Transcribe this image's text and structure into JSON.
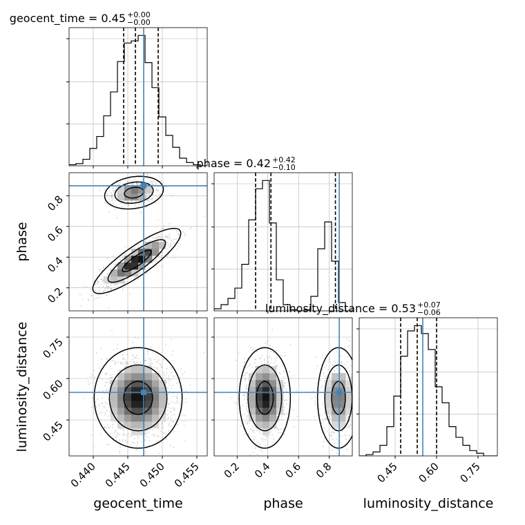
{
  "chart_data": {
    "type": "corner",
    "parameters": [
      "geocent_time",
      "phase",
      "luminosity_distance"
    ],
    "truths": {
      "geocent_time": 0.4473,
      "phase": 0.865,
      "luminosity_distance": 0.55
    },
    "colors": {
      "truth": "#4682b4",
      "hist": "#000000",
      "quantile": "#000000",
      "grid": "#b0b0b0"
    },
    "grid": true,
    "titles": [
      {
        "param": "geocent_time",
        "label": "geocent_time = 0.45",
        "plus": "+0.00",
        "minus": "−0.00"
      },
      {
        "param": "phase",
        "label": "phase = 0.42",
        "plus": "+0.42",
        "minus": "−0.10"
      },
      {
        "param": "luminosity_distance",
        "label": "luminosity_distance = 0.53",
        "plus": "+0.07",
        "minus": "−0.06"
      }
    ],
    "axis_labels": {
      "x": [
        "geocent_time",
        "phase",
        "luminosity_distance"
      ],
      "y": [
        "phase",
        "luminosity_distance"
      ]
    },
    "ranges": {
      "geocent_time": [
        0.4365,
        0.4565
      ],
      "phase": [
        0.05,
        0.95
      ],
      "luminosity_distance": [
        0.32,
        0.82
      ]
    },
    "ticks": {
      "geocent_time": {
        "values": [
          0.44,
          0.445,
          0.45,
          0.455
        ],
        "labels": [
          "0.440",
          "0.445",
          "0.450",
          "0.455"
        ]
      },
      "phase_x": {
        "values": [
          0.2,
          0.4,
          0.6,
          0.8
        ],
        "labels": [
          "0.2",
          "0.4",
          "0.6",
          "0.8"
        ]
      },
      "phase_y": {
        "values": [
          0.2,
          0.4,
          0.6,
          0.8
        ],
        "labels": [
          "0.2",
          "0.4",
          "0.6",
          "0.8"
        ]
      },
      "luminosity_distance": {
        "values": [
          0.45,
          0.6,
          0.75
        ],
        "labels": [
          "0.45",
          "0.60",
          "0.75"
        ]
      }
    },
    "histograms": {
      "geocent_time": {
        "edges": [
          0.4365,
          0.4375,
          0.4385,
          0.4395,
          0.4405,
          0.4415,
          0.4425,
          0.4435,
          0.4445,
          0.4455,
          0.4465,
          0.4475,
          0.4485,
          0.4495,
          0.4505,
          0.4515,
          0.4525,
          0.4535,
          0.4545,
          0.4555,
          0.4565
        ],
        "values": [
          1,
          2,
          6,
          16,
          27,
          46,
          68,
          96,
          113,
          115,
          120,
          95,
          72,
          45,
          28,
          17,
          7,
          3,
          1,
          0
        ],
        "quantiles": [
          0.4444,
          0.4461,
          0.4494
        ]
      },
      "phase": {
        "edges": [
          0.05,
          0.095,
          0.14,
          0.185,
          0.23,
          0.275,
          0.32,
          0.365,
          0.41,
          0.455,
          0.5,
          0.545,
          0.59,
          0.635,
          0.68,
          0.725,
          0.77,
          0.815,
          0.86,
          0.905,
          0.95
        ],
        "values": [
          2,
          6,
          12,
          22,
          45,
          88,
          118,
          126,
          85,
          30,
          6,
          1,
          0,
          1,
          14,
          60,
          86,
          48,
          8,
          0
        ],
        "quantiles": [
          0.32,
          0.42,
          0.84
        ]
      },
      "luminosity_distance": {
        "edges": [
          0.32,
          0.345,
          0.37,
          0.395,
          0.42,
          0.445,
          0.47,
          0.495,
          0.52,
          0.545,
          0.57,
          0.595,
          0.62,
          0.645,
          0.67,
          0.695,
          0.72,
          0.745,
          0.77,
          0.795,
          0.82
        ],
        "values": [
          0,
          1,
          3,
          8,
          22,
          45,
          75,
          94,
          98,
          92,
          80,
          52,
          40,
          22,
          14,
          8,
          4,
          2,
          0,
          0
        ],
        "quantiles": [
          0.47,
          0.53,
          0.6
        ]
      }
    },
    "density_modes": {
      "geocent_time__phase": [
        {
          "x": 0.4463,
          "y": 0.375,
          "sx": 0.0021,
          "sy": 0.07,
          "rho": 0.85,
          "weight": 0.64
        },
        {
          "x": 0.4459,
          "y": 0.82,
          "sx": 0.0014,
          "sy": 0.035,
          "rho": 0.2,
          "weight": 0.36
        }
      ],
      "geocent_time__luminosity_distance": [
        {
          "x": 0.4465,
          "y": 0.53,
          "sx": 0.0021,
          "sy": 0.06,
          "rho": 0.0,
          "weight": 1.0
        }
      ],
      "phase__luminosity_distance": [
        {
          "x": 0.38,
          "y": 0.53,
          "sx": 0.055,
          "sy": 0.06,
          "rho": 0.0,
          "weight": 0.64
        },
        {
          "x": 0.86,
          "y": 0.53,
          "sx": 0.045,
          "sy": 0.06,
          "rho": 0.0,
          "weight": 0.36
        }
      ]
    }
  }
}
